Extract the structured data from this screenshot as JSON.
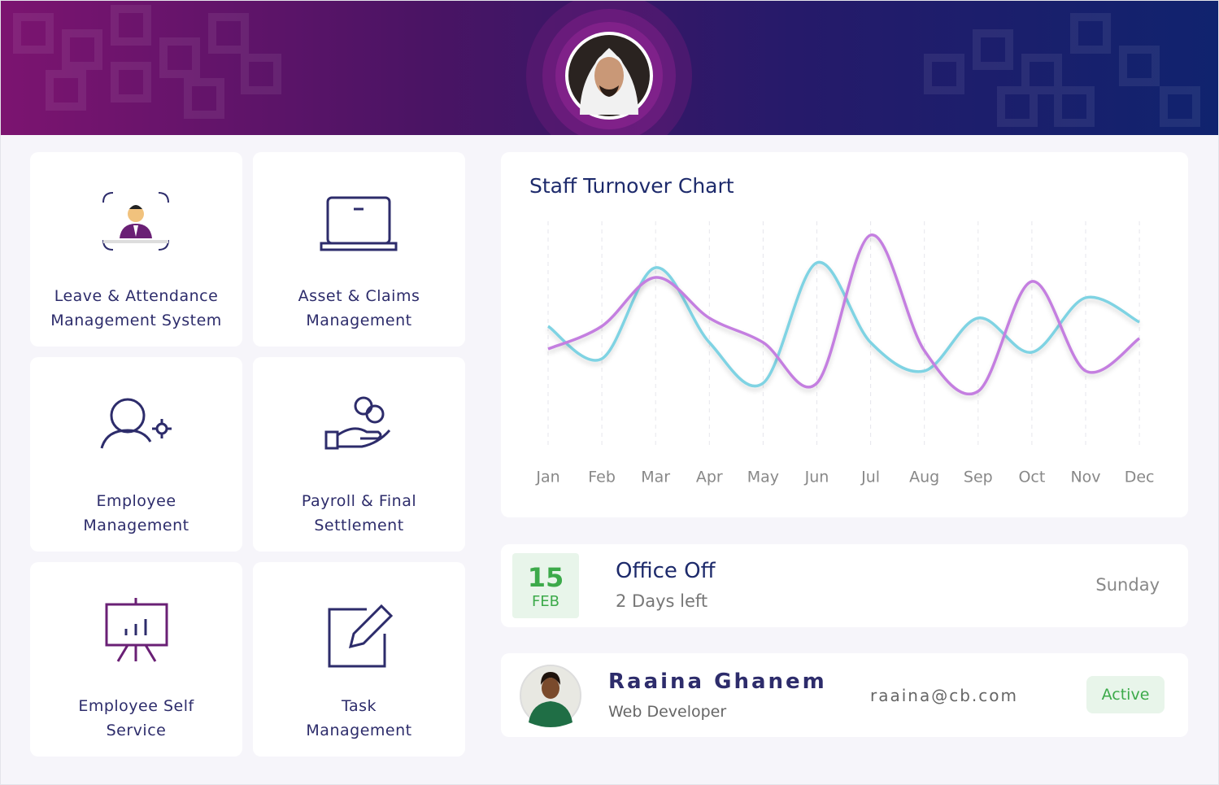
{
  "modules": [
    {
      "lines": [
        "Leave & Attendance",
        "Management System"
      ]
    },
    {
      "lines": [
        "Asset & Claims",
        "Management"
      ]
    },
    {
      "lines": [
        "Employee",
        "Management"
      ]
    },
    {
      "lines": [
        "Payroll & Final",
        "Settlement"
      ]
    },
    {
      "lines": [
        "Employee Self",
        "Service"
      ]
    },
    {
      "lines": [
        "Task",
        "Management"
      ]
    }
  ],
  "chart_data": {
    "type": "line",
    "title": "Staff Turnover Chart",
    "categories": [
      "Jan",
      "Feb",
      "Mar",
      "Apr",
      "May",
      "Jun",
      "Jul",
      "Aug",
      "Sep",
      "Oct",
      "Nov",
      "Dec"
    ],
    "series": [
      {
        "color": "#7fd3e3",
        "values": [
          150,
          110,
          222,
          130,
          80,
          228,
          130,
          95,
          160,
          118,
          185,
          155
        ]
      },
      {
        "color": "#c47fe0",
        "values": [
          122,
          150,
          210,
          160,
          130,
          80,
          262,
          120,
          70,
          205,
          95,
          135
        ]
      }
    ],
    "grid": true
  },
  "event": {
    "day": 15,
    "month": "FEB",
    "title": "Office Off",
    "subtitle": "2 Days left",
    "weekday": "Sunday"
  },
  "employee": {
    "name": "Raaina Ghanem",
    "role": "Web Developer",
    "email": "raaina@cb.com",
    "status": "Active"
  }
}
